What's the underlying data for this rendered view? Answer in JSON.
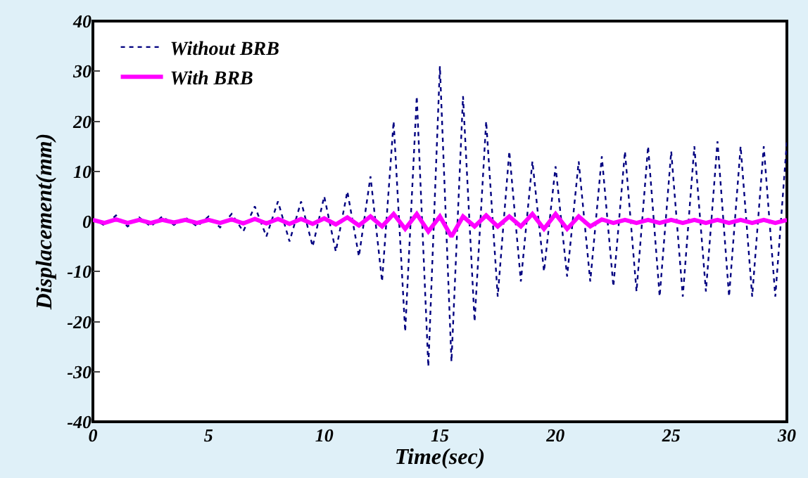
{
  "chart_data": {
    "type": "line",
    "xlabel": "Time(sec)",
    "ylabel": "Displacement(mm)",
    "x": [
      0,
      0.5,
      1,
      1.5,
      2,
      2.5,
      3,
      3.5,
      4,
      4.5,
      5,
      5.5,
      6,
      6.5,
      7,
      7.5,
      8,
      8.5,
      9,
      9.5,
      10,
      10.5,
      11,
      11.5,
      12,
      12.5,
      13,
      13.5,
      14,
      14.5,
      15,
      15.5,
      16,
      16.5,
      17,
      17.5,
      18,
      18.5,
      19,
      19.5,
      20,
      20.5,
      21,
      21.5,
      22,
      22.5,
      23,
      23.5,
      24,
      24.5,
      25,
      25.5,
      26,
      26.5,
      27,
      27.5,
      28,
      28.5,
      29,
      29.5,
      30
    ],
    "series": [
      {
        "name": "Without BRB",
        "color": "#000080",
        "line_style": "dotted",
        "values": [
          0.5,
          -0.8,
          1.2,
          -1,
          0.8,
          -1,
          1,
          -0.7,
          0.8,
          -1,
          1,
          -1.2,
          1.5,
          -2,
          3,
          -3,
          4,
          -4,
          4,
          -5,
          5,
          -6,
          6,
          -7,
          9,
          -12,
          20,
          -22,
          25,
          -29,
          31,
          -28,
          25,
          -20,
          20,
          -15,
          14,
          -12,
          12,
          -10,
          11,
          -11,
          12,
          -12,
          13,
          -13,
          14,
          -14,
          15,
          -15,
          14,
          -15,
          15,
          -14,
          16,
          -15,
          15,
          -15,
          15,
          -15,
          16
        ]
      },
      {
        "name": "With BRB",
        "color": "#ff00ff",
        "line_style": "solid",
        "values": [
          0.3,
          -0.3,
          0.4,
          -0.3,
          0.3,
          -0.3,
          0.3,
          -0.2,
          0.3,
          -0.3,
          0.3,
          -0.3,
          0.4,
          -0.4,
          0.5,
          -0.4,
          0.5,
          -0.5,
          0.5,
          -0.5,
          0.6,
          -0.6,
          0.8,
          -0.8,
          1,
          -1,
          1.5,
          -1.5,
          1.5,
          -2,
          1,
          -3,
          1,
          -1,
          1.2,
          -1,
          1,
          -1,
          1.5,
          -1.5,
          1.5,
          -1.5,
          1,
          -1,
          0.4,
          -0.3,
          0.3,
          -0.3,
          0.3,
          -0.3,
          0.3,
          -0.3,
          0.3,
          -0.3,
          0.3,
          -0.3,
          0.3,
          -0.3,
          0.3,
          -0.3,
          0.3
        ]
      }
    ],
    "xlim": [
      0,
      30
    ],
    "xticks": [
      0,
      5,
      10,
      15,
      20,
      25,
      30
    ],
    "ylim": [
      -40,
      40
    ],
    "yticks": [
      -40,
      -30,
      -20,
      -10,
      0,
      10,
      20,
      30,
      40
    ],
    "grid": false,
    "legend": "top left",
    "marker": "none"
  }
}
